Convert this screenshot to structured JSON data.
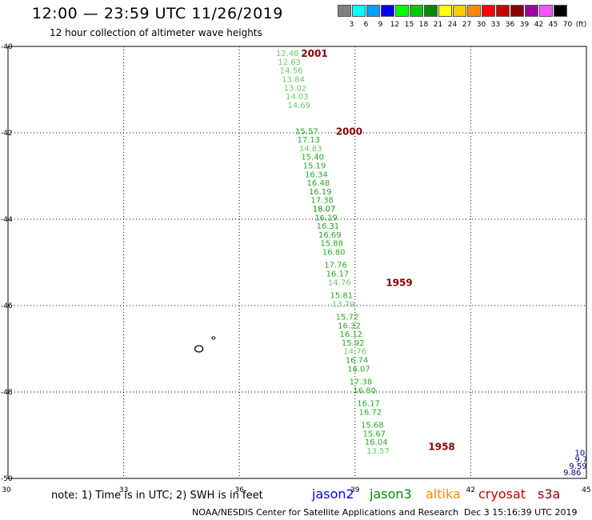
{
  "header": {
    "title": "12:00 — 23:59 UTC 11/26/2019",
    "subtitle": "12 hour collection of altimeter wave heights"
  },
  "legend": {
    "unit": "(ft)",
    "items": [
      {
        "label": "3",
        "color": "#808080"
      },
      {
        "label": "6",
        "color": "#00ffff"
      },
      {
        "label": "9",
        "color": "#00a0ff"
      },
      {
        "label": "12",
        "color": "#0000ff"
      },
      {
        "label": "15",
        "color": "#00ff00"
      },
      {
        "label": "18",
        "color": "#00cc00"
      },
      {
        "label": "21",
        "color": "#008c00"
      },
      {
        "label": "24",
        "color": "#ffff00"
      },
      {
        "label": "27",
        "color": "#ffcc00"
      },
      {
        "label": "30",
        "color": "#ff8c00"
      },
      {
        "label": "33",
        "color": "#ff0000"
      },
      {
        "label": "36",
        "color": "#cc0000"
      },
      {
        "label": "39",
        "color": "#8b0000"
      },
      {
        "label": "42",
        "color": "#a000a0"
      },
      {
        "label": "45",
        "color": "#ff50ff"
      },
      {
        "label": "70",
        "color": "#000000"
      }
    ]
  },
  "footer": {
    "note": "note: 1) Time is in UTC; 2) SWH is in feet",
    "satellites": [
      {
        "name": "jason2",
        "color": "#0000ff"
      },
      {
        "name": "jason3",
        "color": "#008c00"
      },
      {
        "name": "altika",
        "color": "#ff8c00"
      },
      {
        "name": "cryosat",
        "color": "#cc0000"
      },
      {
        "name": "s3a",
        "color": "#8b0000"
      }
    ],
    "credit": "NOAA/NESDIS Center for Satellite Applications and Research",
    "timestamp": "Dec  3 15:16:39 UTC 2019"
  },
  "chart_data": {
    "type": "scatter",
    "xlim": [
      30,
      45
    ],
    "ylim": [
      -50,
      -40
    ],
    "x_ticks": [
      "30",
      "33",
      "36",
      "39",
      "42",
      "45"
    ],
    "y_ticks": [
      "-40",
      "-42",
      "-44",
      "-46",
      "-48",
      "-50"
    ],
    "grid": true,
    "track_times": [
      {
        "label": "2001",
        "x": 37.6,
        "y": -40.15
      },
      {
        "label": "2000",
        "x": 38.5,
        "y": -41.95
      },
      {
        "label": "1959",
        "x": 39.8,
        "y": -45.45
      },
      {
        "label": "1958",
        "x": 40.9,
        "y": -49.25
      }
    ],
    "tracks": [
      {
        "color": "#008c00",
        "points": [
          {
            "x": 36.95,
            "y": -40.15,
            "v": "12.48",
            "c": "#66cc66"
          },
          {
            "x": 37.0,
            "y": -40.35,
            "v": "12.63",
            "c": "#66cc66"
          },
          {
            "x": 37.05,
            "y": -40.55,
            "v": "14.56",
            "c": "#66cc66"
          },
          {
            "x": 37.1,
            "y": -40.75,
            "v": "13.84",
            "c": "#66cc66"
          },
          {
            "x": 37.15,
            "y": -40.95,
            "v": "13.02",
            "c": "#66cc66"
          },
          {
            "x": 37.2,
            "y": -41.15,
            "v": "14.03",
            "c": "#66cc66"
          },
          {
            "x": 37.25,
            "y": -41.35,
            "v": "14.69",
            "c": "#66cc66"
          },
          {
            "x": 37.45,
            "y": -41.95,
            "v": "15.57",
            "c": "#22aa22"
          },
          {
            "x": 37.5,
            "y": -42.15,
            "v": "17.13",
            "c": "#22aa22"
          },
          {
            "x": 37.55,
            "y": -42.35,
            "v": "14.83",
            "c": "#66cc66"
          },
          {
            "x": 37.6,
            "y": -42.55,
            "v": "15.40",
            "c": "#22aa22"
          },
          {
            "x": 37.65,
            "y": -42.75,
            "v": "15.19",
            "c": "#22aa22"
          },
          {
            "x": 37.7,
            "y": -42.95,
            "v": "16.34",
            "c": "#22aa22"
          },
          {
            "x": 37.75,
            "y": -43.15,
            "v": "16.48",
            "c": "#22aa22"
          },
          {
            "x": 37.8,
            "y": -43.35,
            "v": "16.19",
            "c": "#22aa22"
          },
          {
            "x": 37.85,
            "y": -43.55,
            "v": "17.38",
            "c": "#22aa22"
          },
          {
            "x": 37.9,
            "y": -43.75,
            "v": "18.07",
            "c": "#008c00"
          },
          {
            "x": 37.95,
            "y": -43.95,
            "v": "16.19",
            "c": "#22aa22"
          },
          {
            "x": 38.0,
            "y": -44.15,
            "v": "16.31",
            "c": "#22aa22"
          },
          {
            "x": 38.05,
            "y": -44.35,
            "v": "16.69",
            "c": "#22aa22"
          },
          {
            "x": 38.1,
            "y": -44.55,
            "v": "15.88",
            "c": "#22aa22"
          },
          {
            "x": 38.15,
            "y": -44.75,
            "v": "16.80",
            "c": "#22aa22"
          },
          {
            "x": 38.2,
            "y": -45.05,
            "v": "17.76",
            "c": "#22aa22"
          },
          {
            "x": 38.25,
            "y": -45.25,
            "v": "16.17",
            "c": "#22aa22"
          },
          {
            "x": 38.3,
            "y": -45.45,
            "v": "14.76",
            "c": "#66cc66"
          },
          {
            "x": 38.35,
            "y": -45.75,
            "v": "15.81",
            "c": "#22aa22"
          },
          {
            "x": 38.4,
            "y": -45.95,
            "v": "13.79",
            "c": "#66cc66"
          },
          {
            "x": 38.5,
            "y": -46.25,
            "v": "15.72",
            "c": "#22aa22"
          },
          {
            "x": 38.55,
            "y": -46.45,
            "v": "16.32",
            "c": "#22aa22"
          },
          {
            "x": 38.6,
            "y": -46.65,
            "v": "16.12",
            "c": "#22aa22"
          },
          {
            "x": 38.65,
            "y": -46.85,
            "v": "15.92",
            "c": "#22aa22"
          },
          {
            "x": 38.7,
            "y": -47.05,
            "v": "14.76",
            "c": "#66cc66"
          },
          {
            "x": 38.75,
            "y": -47.25,
            "v": "16.74",
            "c": "#22aa22"
          },
          {
            "x": 38.8,
            "y": -47.45,
            "v": "16.07",
            "c": "#22aa22"
          },
          {
            "x": 38.85,
            "y": -47.75,
            "v": "17.38",
            "c": "#22aa22"
          },
          {
            "x": 38.95,
            "y": -47.95,
            "v": "16.80",
            "c": "#22aa22"
          },
          {
            "x": 39.05,
            "y": -48.25,
            "v": "16.17",
            "c": "#22aa22"
          },
          {
            "x": 39.1,
            "y": -48.45,
            "v": "16.72",
            "c": "#22aa22"
          },
          {
            "x": 39.15,
            "y": -48.75,
            "v": "15.68",
            "c": "#22aa22"
          },
          {
            "x": 39.2,
            "y": -48.95,
            "v": "15.67",
            "c": "#22aa22"
          },
          {
            "x": 39.25,
            "y": -49.15,
            "v": "16.04",
            "c": "#22aa22"
          },
          {
            "x": 39.3,
            "y": -49.35,
            "v": "13.57",
            "c": "#66cc66"
          }
        ]
      },
      {
        "color": "#000080",
        "points": [
          {
            "x": 44.7,
            "y": -49.4,
            "v": "10.",
            "c": "#000080"
          },
          {
            "x": 44.7,
            "y": -49.55,
            "v": "9.7",
            "c": "#000080"
          },
          {
            "x": 44.55,
            "y": -49.7,
            "v": "9.59",
            "c": "#000080"
          },
          {
            "x": 44.4,
            "y": -49.85,
            "v": "9.86",
            "c": "#000080"
          }
        ]
      }
    ]
  }
}
